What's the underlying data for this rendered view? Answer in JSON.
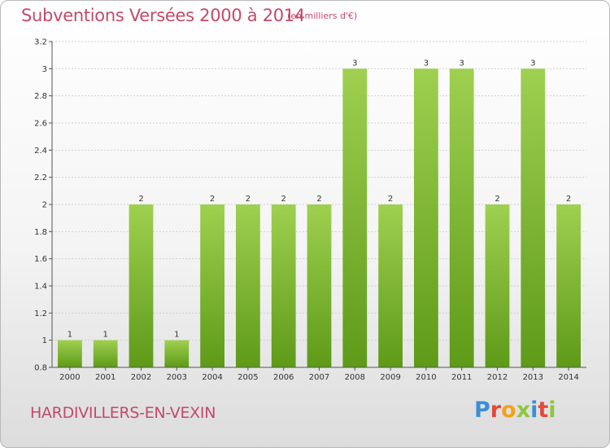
{
  "colors": {
    "title": "#c24a6b",
    "bar_light": "#9fd050",
    "bar_dark": "#5e9a18",
    "grid": "#cfcfcf"
  },
  "header": {
    "title": "Subventions Versées 2000 à 2014",
    "subtitle": "(en milliers d'€)"
  },
  "footer": {
    "commune": "HARDIVILLERS-EN-VEXIN",
    "logo": [
      "P",
      "r",
      "o",
      "x",
      "i",
      "t",
      "i"
    ]
  },
  "chart_data": {
    "type": "bar",
    "categories": [
      "2000",
      "2001",
      "2002",
      "2003",
      "2004",
      "2005",
      "2006",
      "2007",
      "2008",
      "2009",
      "2010",
      "2011",
      "2012",
      "2013",
      "2014"
    ],
    "values": [
      1,
      1,
      2,
      1,
      2,
      2,
      2,
      2,
      3,
      2,
      3,
      3,
      2,
      3,
      2
    ],
    "data_labels": [
      "1",
      "1",
      "2",
      "1",
      "2",
      "2",
      "2",
      "2",
      "3",
      "2",
      "3",
      "3",
      "2",
      "3",
      "2"
    ],
    "bar_positions": [
      1.0,
      1.0,
      2.0,
      1.0,
      2.0,
      2.0,
      2.0,
      2.0,
      3.0,
      2.0,
      3.0,
      3.0,
      2.0,
      3.0,
      2.0
    ],
    "yticks": [
      0.8,
      1.0,
      1.2,
      1.4,
      1.6,
      1.8,
      2.0,
      2.2,
      2.4,
      2.6,
      2.8,
      3.0,
      3.2
    ],
    "ytick_labels": [
      "0.8",
      "1",
      "1.2",
      "1.4",
      "1.6",
      "1.8",
      "2",
      "2.2",
      "2.4",
      "2.6",
      "2.8",
      "3",
      "3.2"
    ],
    "ylim": [
      0.8,
      3.2
    ],
    "grid": true,
    "legend": "none",
    "xlabel": "",
    "ylabel": ""
  }
}
